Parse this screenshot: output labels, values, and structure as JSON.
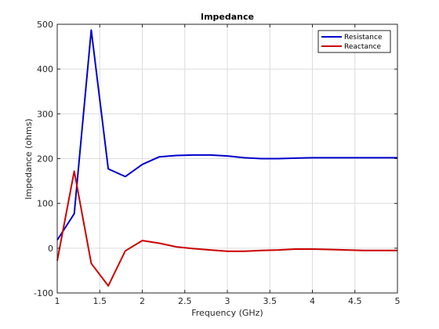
{
  "chart_data": {
    "type": "line",
    "title": "Impedance",
    "xlabel": "Frequency (GHz)",
    "ylabel": "Impedance (ohms)",
    "xlim": [
      1,
      5
    ],
    "ylim": [
      -100,
      500
    ],
    "xticks": [
      1,
      1.5,
      2,
      2.5,
      3,
      3.5,
      4,
      4.5,
      5
    ],
    "xtick_labels": [
      "1",
      "1.5",
      "2",
      "2.5",
      "3",
      "3.5",
      "4",
      "4.5",
      "5"
    ],
    "yticks": [
      -100,
      0,
      100,
      200,
      300,
      400,
      500
    ],
    "ytick_labels": [
      "-100",
      "0",
      "100",
      "200",
      "300",
      "400",
      "500"
    ],
    "grid": true,
    "legend_position": "top-right",
    "x": [
      1,
      1.2,
      1.4,
      1.6,
      1.8,
      2,
      2.2,
      2.4,
      2.6,
      2.8,
      3,
      3.2,
      3.4,
      3.6,
      3.8,
      4,
      4.2,
      4.4,
      4.6,
      4.8,
      5
    ],
    "series": [
      {
        "name": "Resistance",
        "color": "#0000cc",
        "values": [
          18,
          77,
          487,
          177,
          160,
          187,
          204,
          207,
          208,
          208,
          206,
          202,
          200,
          200,
          201,
          202,
          202,
          202,
          202,
          202,
          202
        ]
      },
      {
        "name": "Reactance",
        "color": "#cc0000",
        "values": [
          -28,
          172,
          -34,
          -84,
          -6,
          17,
          11,
          3,
          -1,
          -4,
          -7,
          -7,
          -5,
          -4,
          -2,
          -2,
          -3,
          -4,
          -5,
          -5,
          -5
        ]
      }
    ]
  }
}
